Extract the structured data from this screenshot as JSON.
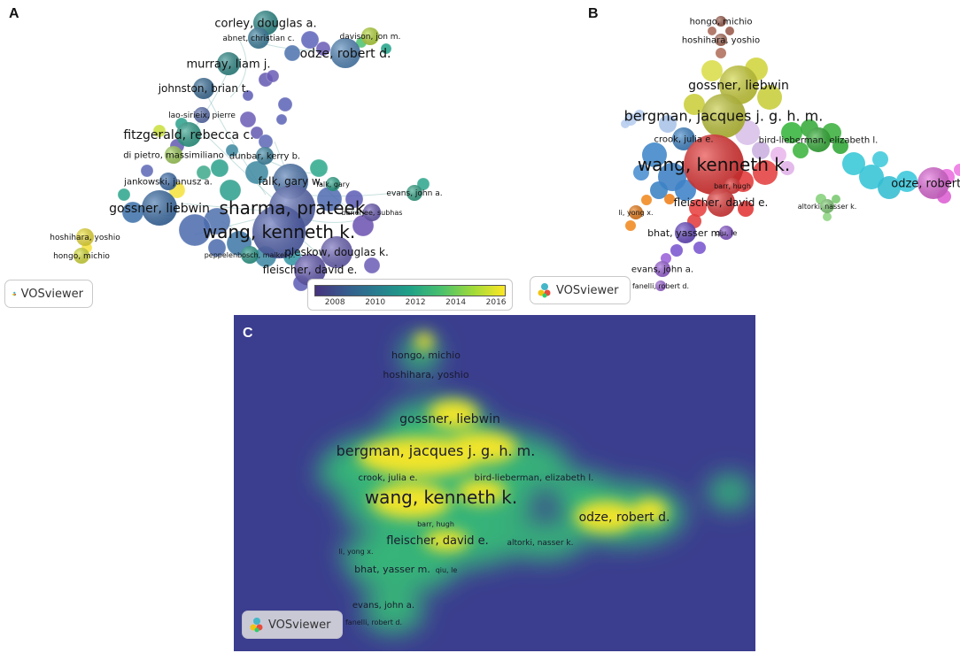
{
  "panels": {
    "a": {
      "label": "A",
      "badge": "VOSviewer",
      "nodes": [
        {
          "name": "corley, douglas a.",
          "size": 13
        },
        {
          "name": "abnet, christian c.",
          "size": 9
        },
        {
          "name": "davison, jon m.",
          "size": 9
        },
        {
          "name": "odze, robert d.",
          "size": 14
        },
        {
          "name": "murray, liam j.",
          "size": 13
        },
        {
          "name": "johnston, brian t.",
          "size": 12
        },
        {
          "name": "lao-sirieix, pierre",
          "size": 9
        },
        {
          "name": "fitzgerald, rebecca c.",
          "size": 14
        },
        {
          "name": "di pietro, massimiliano",
          "size": 10
        },
        {
          "name": "dunbar, kerry b.",
          "size": 10
        },
        {
          "name": "jankowski, janusz a.",
          "size": 10
        },
        {
          "name": "falk, gary w.",
          "size": 12
        },
        {
          "name": "falk, gary",
          "size": 8
        },
        {
          "name": "evans, john a.",
          "size": 9
        },
        {
          "name": "gossner, liebwin",
          "size": 14
        },
        {
          "name": "sharma, prateek",
          "size": 20
        },
        {
          "name": "banerjee, subhas",
          "size": 8
        },
        {
          "name": "wang, kenneth k.",
          "size": 20
        },
        {
          "name": "hoshihara, yoshio",
          "size": 9
        },
        {
          "name": "hongo, michio",
          "size": 9
        },
        {
          "name": "peppelenbosch, maikel p.",
          "size": 8
        },
        {
          "name": "pleskow, douglas k.",
          "size": 12
        },
        {
          "name": "fleischer, david e.",
          "size": 12
        }
      ],
      "colorbar": {
        "ticks": [
          "2008",
          "2010",
          "2012",
          "2014",
          "2016"
        ],
        "range": [
          2007,
          2016.5
        ],
        "colors": [
          "#46327e",
          "#365c8d",
          "#277f8e",
          "#1fa187",
          "#4ac16d",
          "#a0da39",
          "#fde725"
        ]
      }
    },
    "b": {
      "label": "B",
      "badge": "VOSviewer",
      "nodes": [
        {
          "name": "hongo, michio",
          "size": 10
        },
        {
          "name": "hoshihara, yoshio",
          "size": 10
        },
        {
          "name": "gossner, liebwin",
          "size": 14
        },
        {
          "name": "bergman, jacques j. g. h. m.",
          "size": 16
        },
        {
          "name": "crook, julia e.",
          "size": 10
        },
        {
          "name": "bird-lieberman, elizabeth l.",
          "size": 10
        },
        {
          "name": "wang, kenneth k.",
          "size": 20
        },
        {
          "name": "barr, hugh",
          "size": 8
        },
        {
          "name": "odze, robert d.",
          "size": 13
        },
        {
          "name": "fleischer, david e.",
          "size": 12
        },
        {
          "name": "li, yong x.",
          "size": 8
        },
        {
          "name": "altorki, nasser k.",
          "size": 8
        },
        {
          "name": "bhat, yasser m.",
          "size": 11
        },
        {
          "name": "qiu, le",
          "size": 8
        },
        {
          "name": "evans, john a.",
          "size": 10
        },
        {
          "name": "fanelli, robert d.",
          "size": 8
        }
      ]
    },
    "c": {
      "label": "C",
      "badge": "VOSviewer",
      "nodes": [
        {
          "name": "hongo, michio",
          "size": 11
        },
        {
          "name": "hoshihara, yoshio",
          "size": 11
        },
        {
          "name": "gossner, liebwin",
          "size": 14
        },
        {
          "name": "bergman, jacques j. g. h. m.",
          "size": 16
        },
        {
          "name": "crook, julia e.",
          "size": 10
        },
        {
          "name": "bird-lieberman, elizabeth l.",
          "size": 10
        },
        {
          "name": "wang, kenneth k.",
          "size": 20
        },
        {
          "name": "barr, hugh",
          "size": 8
        },
        {
          "name": "odze, robert d.",
          "size": 14
        },
        {
          "name": "fleischer, david e.",
          "size": 13
        },
        {
          "name": "altorki, nasser k.",
          "size": 9
        },
        {
          "name": "li, yong x.",
          "size": 8
        },
        {
          "name": "bhat, yasser m.",
          "size": 11
        },
        {
          "name": "qiu, le",
          "size": 8
        },
        {
          "name": "evans, john a.",
          "size": 10
        },
        {
          "name": "fanelli, robert d.",
          "size": 8
        }
      ]
    }
  }
}
